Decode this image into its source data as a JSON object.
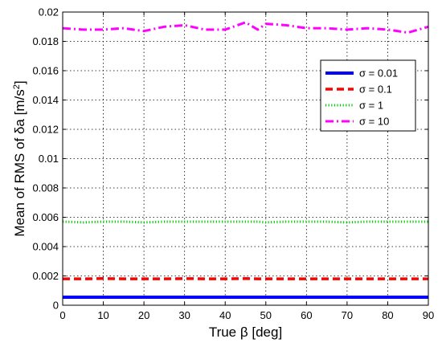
{
  "chart_data": {
    "type": "line",
    "xlabel": "True β [deg]",
    "ylabel_prefix": "Mean of RMS of δa [m/s",
    "ylabel_sup": "2",
    "ylabel_suffix": "]",
    "xlim": [
      0,
      90
    ],
    "ylim": [
      0,
      0.02
    ],
    "xticks": [
      0,
      10,
      20,
      30,
      40,
      50,
      60,
      70,
      80,
      90
    ],
    "xtick_labels": [
      "0",
      "10",
      "20",
      "30",
      "40",
      "50",
      "60",
      "70",
      "80",
      "90"
    ],
    "yticks": [
      0,
      0.002,
      0.004,
      0.006,
      0.008,
      0.01,
      0.012,
      0.014,
      0.016,
      0.018,
      0.02
    ],
    "ytick_labels": [
      "0",
      "0.002",
      "0.004",
      "0.006",
      "0.008",
      "0.01",
      "0.012",
      "0.014",
      "0.016",
      "0.018",
      "0.02"
    ],
    "grid": true,
    "legend_position": "top-right",
    "x": [
      0,
      5,
      10,
      15,
      20,
      25,
      30,
      35,
      40,
      45,
      48,
      50,
      55,
      60,
      65,
      70,
      75,
      80,
      85,
      90
    ],
    "series": [
      {
        "name": "σ = 0.01",
        "color": "#0000ff",
        "dash": "solid",
        "values": [
          0.00055,
          0.00055,
          0.00055,
          0.00055,
          0.00055,
          0.00055,
          0.00055,
          0.00055,
          0.00055,
          0.00055,
          0.00055,
          0.00055,
          0.00055,
          0.00055,
          0.00055,
          0.00055,
          0.00055,
          0.00055,
          0.00055,
          0.00055
        ]
      },
      {
        "name": "σ = 0.1",
        "color": "#ff0000",
        "dash": "dashed",
        "values": [
          0.0018,
          0.0018,
          0.00182,
          0.0018,
          0.0018,
          0.0018,
          0.00182,
          0.0018,
          0.0018,
          0.00182,
          0.0018,
          0.0018,
          0.0018,
          0.0018,
          0.0018,
          0.0018,
          0.0018,
          0.0018,
          0.0018,
          0.0018
        ]
      },
      {
        "name": "σ = 1",
        "color": "#00cc00",
        "dash": "dotted",
        "values": [
          0.0057,
          0.00565,
          0.0057,
          0.0057,
          0.00565,
          0.0057,
          0.0057,
          0.0057,
          0.0057,
          0.0057,
          0.0057,
          0.00565,
          0.0057,
          0.0057,
          0.0057,
          0.00565,
          0.0057,
          0.0057,
          0.0057,
          0.0057
        ]
      },
      {
        "name": "σ = 10",
        "color": "#ff00ff",
        "dash": "dashdot",
        "values": [
          0.0189,
          0.0188,
          0.0188,
          0.0189,
          0.0187,
          0.019,
          0.0191,
          0.0188,
          0.0188,
          0.0193,
          0.0188,
          0.0192,
          0.0191,
          0.0189,
          0.0189,
          0.0188,
          0.0189,
          0.0188,
          0.0186,
          0.019
        ]
      }
    ]
  }
}
